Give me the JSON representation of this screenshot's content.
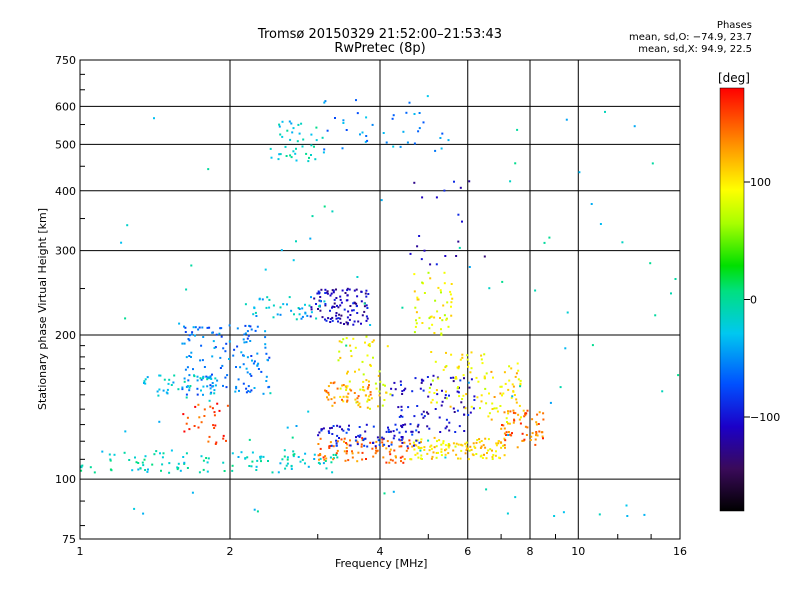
{
  "header": {
    "title_line1": "Tromsø 20150329 21:52:00–21:53:43",
    "title_line2": "RwPretec (8p)"
  },
  "stats": {
    "heading": "Phases",
    "line_o": "mean, sd,O: −74.9, 23.7",
    "line_x": "mean, sd,X:  94.9, 22.5"
  },
  "colorbar": {
    "label": "[deg]",
    "ticks": [
      "100",
      "0",
      "−100"
    ],
    "tick_values": [
      100,
      0,
      -100
    ],
    "range": [
      -180,
      180
    ]
  },
  "chart_data": {
    "type": "scatter",
    "title": "Tromsø 20150329 21:52:00–21:53:43",
    "subtitle": "RwPretec (8p)",
    "xlabel": "Frequency [MHz]",
    "ylabel": "Stationary phase Virtual Height [km]",
    "x_scale": "log",
    "y_scale": "log",
    "xlim": [
      1,
      16
    ],
    "ylim": [
      75,
      750
    ],
    "x_ticks": [
      1,
      2,
      4,
      6,
      8,
      10,
      16
    ],
    "x_tick_labels": [
      "1",
      "2",
      "4",
      "6",
      "8",
      "10",
      "16"
    ],
    "y_ticks": [
      75,
      100,
      200,
      300,
      400,
      500,
      600,
      750
    ],
    "y_tick_labels": [
      "75",
      "100",
      "200",
      "300",
      "400",
      "500",
      "600",
      "750"
    ],
    "grid": true,
    "color_variable": "phase [deg]",
    "clusters": [
      {
        "x_range": [
          1.0,
          3.3
        ],
        "y_range": [
          103,
          115
        ],
        "phase": -15,
        "n": 120
      },
      {
        "x_range": [
          3.0,
          4.6
        ],
        "y_range": [
          108,
          122
        ],
        "phase": 145,
        "n": 90
      },
      {
        "x_range": [
          4.6,
          7.2
        ],
        "y_range": [
          110,
          122
        ],
        "phase": 105,
        "n": 120
      },
      {
        "x_range": [
          7.0,
          8.6
        ],
        "y_range": [
          115,
          140
        ],
        "phase": 145,
        "n": 60
      },
      {
        "x_range": [
          3.0,
          4.8
        ],
        "y_range": [
          117,
          130
        ],
        "phase": -95,
        "n": 80
      },
      {
        "x_range": [
          4.2,
          6.2
        ],
        "y_range": [
          125,
          165
        ],
        "phase": -105,
        "n": 90
      },
      {
        "x_range": [
          5.0,
          6.6
        ],
        "y_range": [
          140,
          185
        ],
        "phase": 95,
        "n": 60
      },
      {
        "x_range": [
          6.6,
          7.8
        ],
        "y_range": [
          130,
          175
        ],
        "phase": 105,
        "n": 50
      },
      {
        "x_range": [
          1.6,
          2.4
        ],
        "y_range": [
          150,
          210
        ],
        "phase": -60,
        "n": 140
      },
      {
        "x_range": [
          1.3,
          1.9
        ],
        "y_range": [
          148,
          165
        ],
        "phase": -25,
        "n": 50
      },
      {
        "x_range": [
          1.6,
          2.0
        ],
        "y_range": [
          118,
          145
        ],
        "phase": 160,
        "n": 30
      },
      {
        "x_range": [
          2.9,
          3.8
        ],
        "y_range": [
          210,
          250
        ],
        "phase": -110,
        "n": 110
      },
      {
        "x_range": [
          3.3,
          4.2
        ],
        "y_range": [
          140,
          200
        ],
        "phase": 95,
        "n": 70
      },
      {
        "x_range": [
          3.1,
          3.9
        ],
        "y_range": [
          140,
          160
        ],
        "phase": 130,
        "n": 40
      },
      {
        "x_range": [
          4.6,
          5.6
        ],
        "y_range": [
          200,
          270
        ],
        "phase": 90,
        "n": 50
      },
      {
        "x_range": [
          2.2,
          3.1
        ],
        "y_range": [
          215,
          240
        ],
        "phase": -30,
        "n": 40
      },
      {
        "x_range": [
          2.4,
          3.0
        ],
        "y_range": [
          460,
          560
        ],
        "phase": -20,
        "n": 40
      },
      {
        "x_range": [
          3.0,
          5.5
        ],
        "y_range": [
          470,
          640
        ],
        "phase": -50,
        "n": 40
      },
      {
        "x_range": [
          4.5,
          6.5
        ],
        "y_range": [
          280,
          420
        ],
        "phase": -110,
        "n": 20
      },
      {
        "x_range": [
          1.2,
          16.0
        ],
        "y_range": [
          80,
          650
        ],
        "phase": -20,
        "n": 90
      }
    ]
  }
}
